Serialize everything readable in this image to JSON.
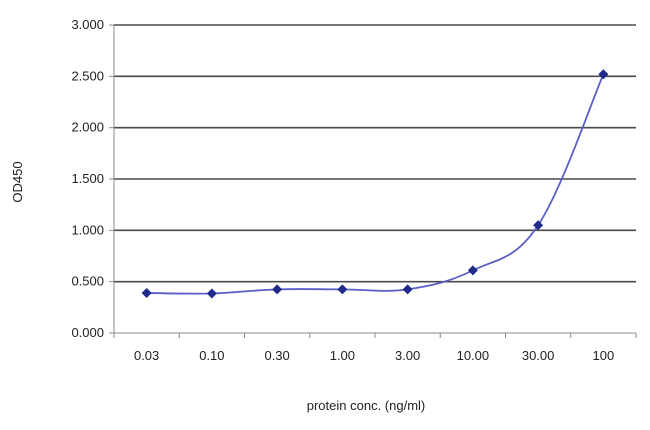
{
  "chart_data": {
    "type": "line",
    "title": "",
    "xlabel": "protein conc. (ng/ml)",
    "ylabel": "OD450",
    "categories": [
      "0.03",
      "0.10",
      "0.30",
      "1.00",
      "3.00",
      "10.00",
      "30.00",
      "100"
    ],
    "series": [
      {
        "values": [
          0.39,
          0.385,
          0.425,
          0.425,
          0.425,
          0.61,
          1.05,
          2.52
        ]
      }
    ],
    "ylim": [
      0,
      3.0
    ],
    "yticks": [
      "0.000",
      "0.500",
      "1.000",
      "1.500",
      "2.000",
      "2.500",
      "3.000"
    ],
    "grid": true,
    "legend": "none",
    "colors": {
      "line": "#5a5fc8",
      "marker": "#1f2a8a",
      "grid": "#4a4a4a",
      "axis": "#888888"
    }
  }
}
